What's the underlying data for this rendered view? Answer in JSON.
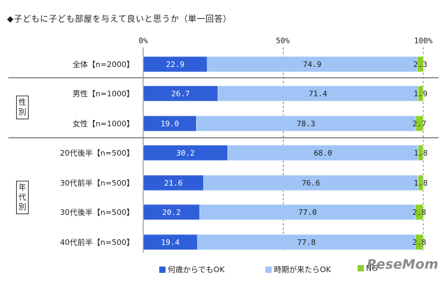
{
  "title": "◆子どもに子ども部屋を与えて良いと思うか（単一回答）",
  "chart_data": {
    "type": "bar",
    "orientation": "horizontal",
    "stacked": true,
    "percent_axis": true,
    "xlim": [
      0,
      100
    ],
    "x_ticks": [
      "0%",
      "50%",
      "100%"
    ],
    "categories": [
      "全体【n=2000】",
      "男性【n=1000】",
      "女性【n=1000】",
      "20代後半【n=500】",
      "30代前半【n=500】",
      "30代後半【n=500】",
      "40代前半【n=500】"
    ],
    "groups": [
      {
        "label": "性別",
        "categories": [
          "男性【n=1000】",
          "女性【n=1000】"
        ]
      },
      {
        "label": "年代別",
        "categories": [
          "20代後半【n=500】",
          "30代前半【n=500】",
          "30代後半【n=500】",
          "40代前半【n=500】"
        ]
      }
    ],
    "series": [
      {
        "name": "何歳からでもOK",
        "color": "#2f5fd8",
        "label_color": "#ffffff",
        "values": [
          22.9,
          26.7,
          19.0,
          30.2,
          21.6,
          20.2,
          19.4
        ]
      },
      {
        "name": "時期が来たらOK",
        "color": "#9fc4f5",
        "label_color": "#222222",
        "values": [
          74.9,
          71.4,
          78.3,
          68.0,
          76.6,
          77.0,
          77.8
        ]
      },
      {
        "name": "NG",
        "color": "#8ccf2a",
        "label_color": "#222222",
        "values": [
          2.3,
          1.9,
          2.7,
          1.8,
          1.8,
          2.8,
          2.8
        ]
      }
    ],
    "value_labels": [
      [
        "22.9",
        "26.7",
        "19.0",
        "30.2",
        "21.6",
        "20.2",
        "19.4"
      ],
      [
        "74.9",
        "71.4",
        "78.3",
        "68.0",
        "76.6",
        "77.0",
        "77.8"
      ],
      [
        "2.3",
        "1.9",
        "2.7",
        "1.8",
        "1.8",
        "2.8",
        "2.8"
      ]
    ],
    "grid": true,
    "legend_position": "bottom"
  },
  "watermark": "ReseMom"
}
